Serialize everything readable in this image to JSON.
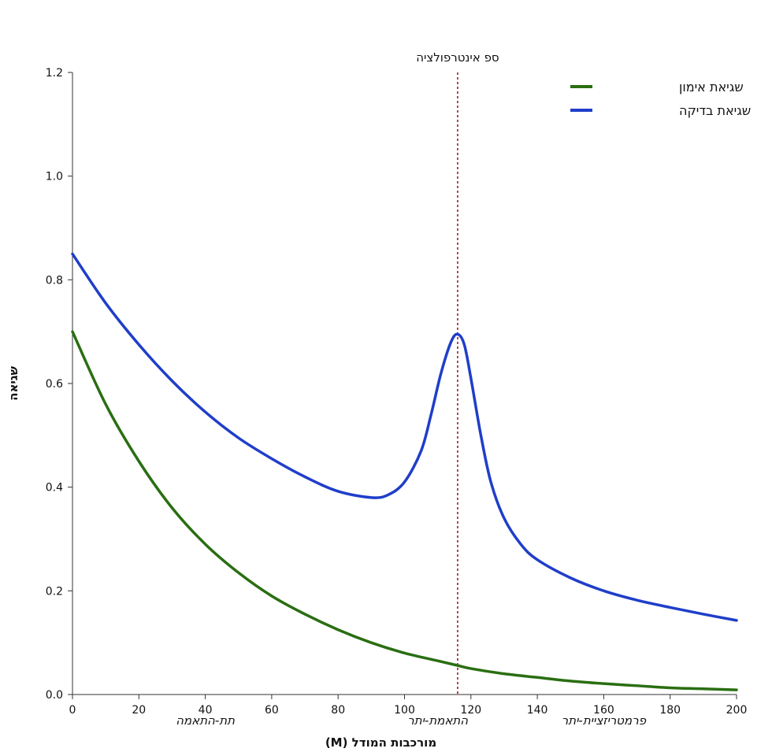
{
  "chart_data": {
    "type": "line",
    "xlabel": "מורכבות המודל (M)",
    "ylabel": "שגיאה",
    "xlim": [
      0,
      200
    ],
    "ylim": [
      0,
      1.2
    ],
    "x_ticks": [
      0,
      20,
      40,
      60,
      80,
      100,
      120,
      140,
      160,
      180,
      200
    ],
    "y_ticks": [
      0.0,
      0.2,
      0.4,
      0.6,
      0.8,
      1.0,
      1.2
    ],
    "grid": false,
    "legend_position": "top-right",
    "series": [
      {
        "name": "שגיאת אימון",
        "color": "#2a6e12",
        "x": [
          0,
          10,
          20,
          30,
          40,
          50,
          60,
          70,
          80,
          90,
          100,
          110,
          116,
          120,
          130,
          140,
          150,
          160,
          170,
          180,
          190,
          200
        ],
        "y": [
          0.7,
          0.56,
          0.45,
          0.36,
          0.29,
          0.235,
          0.19,
          0.155,
          0.125,
          0.1,
          0.08,
          0.065,
          0.056,
          0.05,
          0.04,
          0.033,
          0.026,
          0.021,
          0.017,
          0.013,
          0.011,
          0.009
        ]
      },
      {
        "name": "שגיאת בדיקה",
        "color": "#1f3ec9",
        "x": [
          0,
          10,
          20,
          30,
          40,
          50,
          60,
          70,
          80,
          90,
          95,
          100,
          105,
          108,
          111,
          114,
          116,
          118,
          120,
          123,
          126,
          130,
          135,
          140,
          150,
          160,
          170,
          180,
          190,
          200
        ],
        "y": [
          0.85,
          0.755,
          0.675,
          0.605,
          0.545,
          0.495,
          0.455,
          0.42,
          0.392,
          0.38,
          0.385,
          0.41,
          0.47,
          0.54,
          0.62,
          0.68,
          0.695,
          0.675,
          0.61,
          0.5,
          0.41,
          0.34,
          0.29,
          0.26,
          0.225,
          0.2,
          0.182,
          0.168,
          0.155,
          0.143
        ]
      }
    ],
    "threshold": {
      "x": 116,
      "label": "ספ אינטרפולציה",
      "color": "#9b1f1f"
    },
    "regions": [
      {
        "label": "תת-התאמה",
        "x": 40
      },
      {
        "label": "התאמת-יתר",
        "x": 110
      },
      {
        "label": "פרמטריזציית-יתר",
        "x": 160
      }
    ]
  }
}
